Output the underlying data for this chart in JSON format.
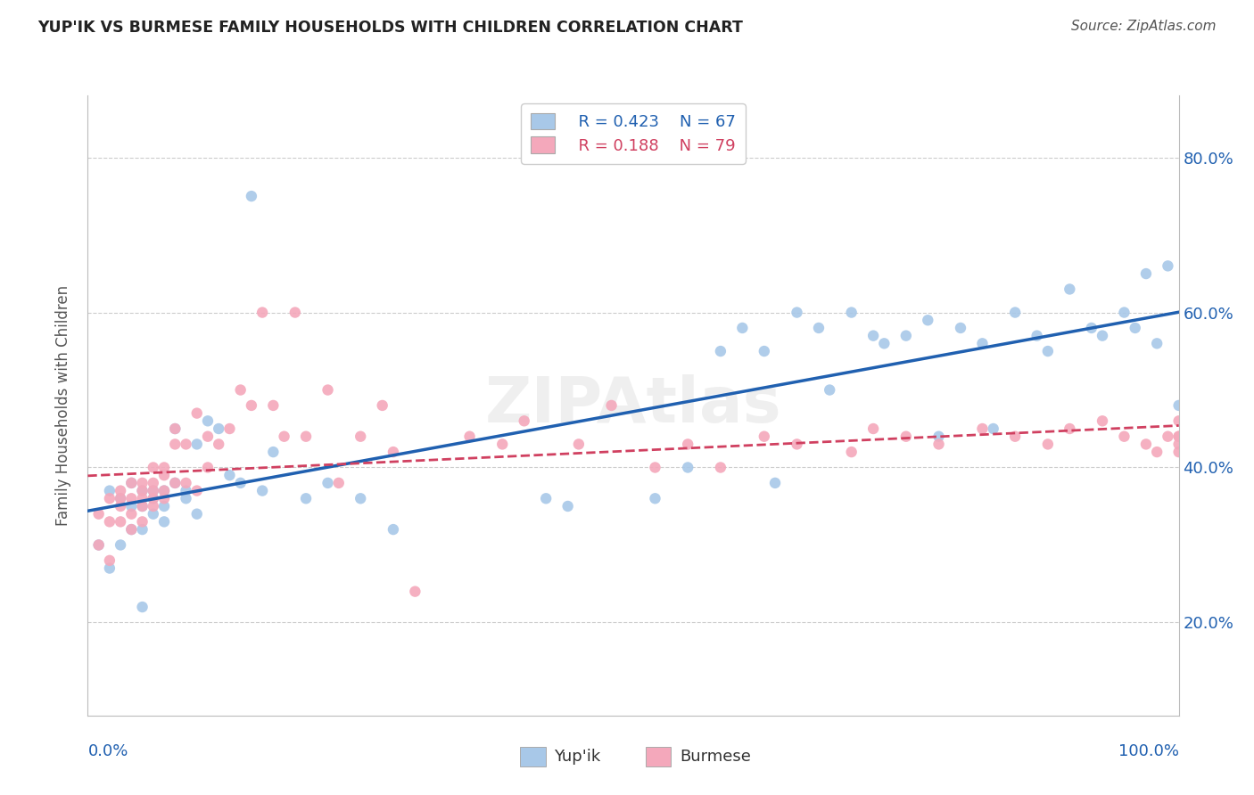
{
  "title": "YUP'IK VS BURMESE FAMILY HOUSEHOLDS WITH CHILDREN CORRELATION CHART",
  "source": "Source: ZipAtlas.com",
  "ylabel": "Family Households with Children",
  "watermark": "ZIPAtlas",
  "yupik_color": "#a8c8e8",
  "burmese_color": "#f4a8bb",
  "yupik_line_color": "#2060b0",
  "burmese_line_color": "#d04060",
  "legend_r_yupik": "R = 0.423",
  "legend_n_yupik": "N = 67",
  "legend_r_burmese": "R = 0.188",
  "legend_n_burmese": "N = 79",
  "ytick_values": [
    0.2,
    0.4,
    0.6,
    0.8
  ],
  "ytick_labels": [
    "20.0%",
    "40.0%",
    "60.0%",
    "80.0%"
  ],
  "xlim": [
    0.0,
    1.0
  ],
  "ylim": [
    0.08,
    0.88
  ],
  "yupik_x": [
    0.01,
    0.02,
    0.02,
    0.03,
    0.03,
    0.04,
    0.04,
    0.04,
    0.05,
    0.05,
    0.05,
    0.05,
    0.06,
    0.06,
    0.06,
    0.07,
    0.07,
    0.07,
    0.08,
    0.08,
    0.09,
    0.09,
    0.1,
    0.1,
    0.11,
    0.12,
    0.13,
    0.14,
    0.15,
    0.16,
    0.17,
    0.2,
    0.22,
    0.25,
    0.28,
    0.42,
    0.44,
    0.52,
    0.55,
    0.58,
    0.6,
    0.62,
    0.63,
    0.65,
    0.67,
    0.68,
    0.7,
    0.72,
    0.73,
    0.75,
    0.77,
    0.78,
    0.8,
    0.82,
    0.83,
    0.85,
    0.87,
    0.88,
    0.9,
    0.92,
    0.93,
    0.95,
    0.96,
    0.97,
    0.98,
    0.99,
    1.0
  ],
  "yupik_y": [
    0.3,
    0.27,
    0.37,
    0.36,
    0.3,
    0.38,
    0.35,
    0.32,
    0.37,
    0.35,
    0.32,
    0.22,
    0.37,
    0.36,
    0.34,
    0.37,
    0.35,
    0.33,
    0.45,
    0.38,
    0.37,
    0.36,
    0.43,
    0.34,
    0.46,
    0.45,
    0.39,
    0.38,
    0.75,
    0.37,
    0.42,
    0.36,
    0.38,
    0.36,
    0.32,
    0.36,
    0.35,
    0.36,
    0.4,
    0.55,
    0.58,
    0.55,
    0.38,
    0.6,
    0.58,
    0.5,
    0.6,
    0.57,
    0.56,
    0.57,
    0.59,
    0.44,
    0.58,
    0.56,
    0.45,
    0.6,
    0.57,
    0.55,
    0.63,
    0.58,
    0.57,
    0.6,
    0.58,
    0.65,
    0.56,
    0.66,
    0.48
  ],
  "burmese_x": [
    0.01,
    0.01,
    0.02,
    0.02,
    0.02,
    0.03,
    0.03,
    0.03,
    0.03,
    0.04,
    0.04,
    0.04,
    0.04,
    0.05,
    0.05,
    0.05,
    0.05,
    0.05,
    0.06,
    0.06,
    0.06,
    0.06,
    0.06,
    0.07,
    0.07,
    0.07,
    0.07,
    0.08,
    0.08,
    0.08,
    0.09,
    0.09,
    0.1,
    0.1,
    0.11,
    0.11,
    0.12,
    0.13,
    0.14,
    0.15,
    0.16,
    0.17,
    0.18,
    0.19,
    0.2,
    0.22,
    0.23,
    0.25,
    0.27,
    0.28,
    0.3,
    0.35,
    0.38,
    0.4,
    0.45,
    0.48,
    0.52,
    0.55,
    0.58,
    0.62,
    0.65,
    0.7,
    0.72,
    0.75,
    0.78,
    0.82,
    0.85,
    0.88,
    0.9,
    0.93,
    0.95,
    0.97,
    0.98,
    0.99,
    1.0,
    1.0,
    1.0,
    1.0,
    1.0
  ],
  "burmese_y": [
    0.34,
    0.3,
    0.36,
    0.33,
    0.28,
    0.37,
    0.36,
    0.35,
    0.33,
    0.38,
    0.36,
    0.34,
    0.32,
    0.38,
    0.37,
    0.36,
    0.35,
    0.33,
    0.4,
    0.38,
    0.37,
    0.36,
    0.35,
    0.4,
    0.39,
    0.37,
    0.36,
    0.45,
    0.43,
    0.38,
    0.43,
    0.38,
    0.47,
    0.37,
    0.44,
    0.4,
    0.43,
    0.45,
    0.5,
    0.48,
    0.6,
    0.48,
    0.44,
    0.6,
    0.44,
    0.5,
    0.38,
    0.44,
    0.48,
    0.42,
    0.24,
    0.44,
    0.43,
    0.46,
    0.43,
    0.48,
    0.4,
    0.43,
    0.4,
    0.44,
    0.43,
    0.42,
    0.45,
    0.44,
    0.43,
    0.45,
    0.44,
    0.43,
    0.45,
    0.46,
    0.44,
    0.43,
    0.42,
    0.44,
    0.46,
    0.44,
    0.43,
    0.42,
    0.44
  ]
}
